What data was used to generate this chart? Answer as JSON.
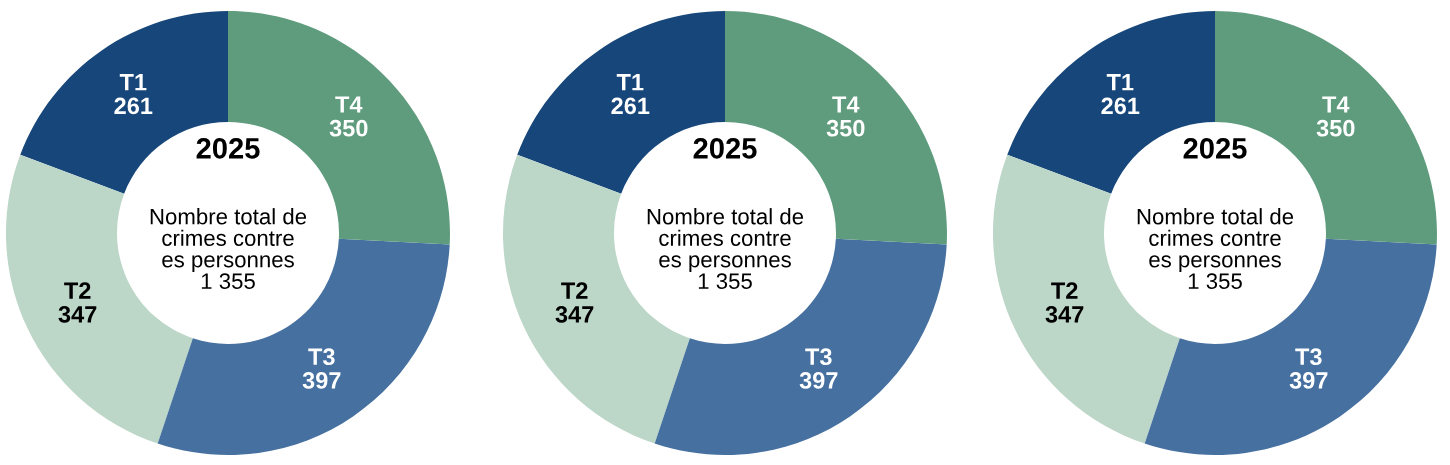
{
  "chart_data": [
    {
      "type": "donut",
      "title": "2025",
      "subtitle": "Nombre total de\ncrimes contre\nes personnes\n1 355",
      "categories": [
        "T1",
        "T2",
        "T3",
        "T4"
      ],
      "values": [
        261,
        347,
        397,
        350
      ],
      "colors": [
        "#17477a",
        "#bcd6c8",
        "#4670a0",
        "#5f9c7e"
      ],
      "data_labels": true,
      "legend": false
    },
    {
      "type": "donut",
      "title": "2025",
      "subtitle": "Nombre total de\ncrimes contre\nes personnes\n1 355",
      "categories": [
        "T1",
        "T2",
        "T3",
        "T4"
      ],
      "values": [
        261,
        347,
        397,
        350
      ],
      "colors": [
        "#17477a",
        "#bcd6c8",
        "#4670a0",
        "#5f9c7e"
      ],
      "data_labels": true,
      "legend": false
    },
    {
      "type": "donut",
      "title": "2025",
      "subtitle": "Nombre total de\ncrimes contre\nes personnes\n1 355",
      "categories": [
        "T1",
        "T2",
        "T3",
        "T4"
      ],
      "values": [
        261,
        347,
        397,
        350
      ],
      "colors": [
        "#17477a",
        "#bcd6c8",
        "#4670a0",
        "#5f9c7e"
      ],
      "data_labels": true,
      "legend": false
    }
  ]
}
